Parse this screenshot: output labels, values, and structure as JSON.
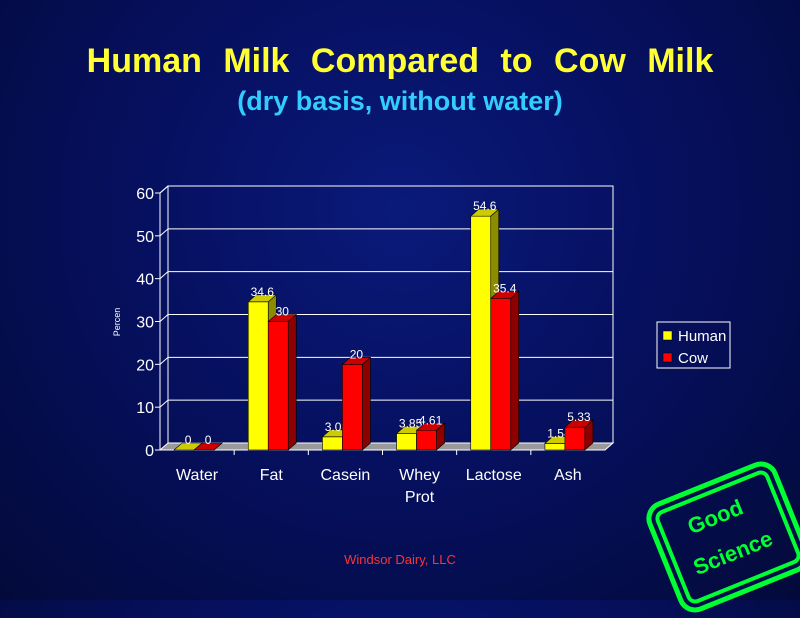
{
  "slide": {
    "title": "Human Milk Compared to Cow Milk",
    "subtitle": "(dry basis, without water)",
    "footer": "Windsor Dairy, LLC",
    "stamp": {
      "line1": "Good",
      "line2": "Science",
      "color": "#00ff33"
    }
  },
  "chart_data": {
    "type": "bar",
    "title": "",
    "xlabel": "",
    "ylabel": "Percen",
    "ylim": [
      0,
      60
    ],
    "yticks": [
      0,
      10,
      20,
      30,
      40,
      50,
      60
    ],
    "grid": true,
    "legend_position": "right",
    "categories": [
      "Water",
      "Fat",
      "Casein",
      "Whey Prot",
      "Lactose",
      "Ash"
    ],
    "series": [
      {
        "name": "Human",
        "color": "#ffff00",
        "values": [
          0,
          34.6,
          3.08,
          3.85,
          54.6,
          1.54
        ],
        "labels": [
          "0",
          "34.6",
          "3.08",
          "3.85",
          "54.6",
          "1.54"
        ]
      },
      {
        "name": "Cow",
        "color": "#ff0000",
        "values": [
          0,
          30,
          20,
          4.61,
          35.4,
          5.33
        ],
        "labels": [
          "0",
          "30",
          "20",
          "4.61",
          "35.4",
          "5.33"
        ]
      }
    ]
  }
}
